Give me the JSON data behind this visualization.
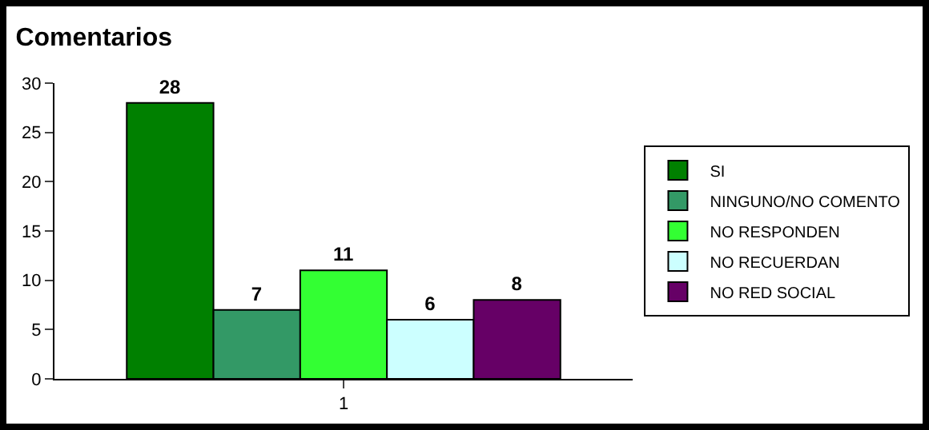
{
  "chart_data": {
    "type": "bar",
    "title": "Comentarios",
    "categories": [
      "1"
    ],
    "series": [
      {
        "name": "SI",
        "color": "#008000",
        "values": [
          28
        ]
      },
      {
        "name": "NINGUNO/NO COMENTO",
        "color": "#339966",
        "values": [
          7
        ]
      },
      {
        "name": "NO RESPONDEN",
        "color": "#33ff33",
        "values": [
          11
        ]
      },
      {
        "name": "NO RECUERDAN",
        "color": "#ccffff",
        "values": [
          6
        ]
      },
      {
        "name": "NO RED SOCIAL",
        "color": "#660066",
        "values": [
          8
        ]
      }
    ],
    "ylim": [
      0,
      30
    ],
    "yticks": [
      0,
      5,
      10,
      15,
      20,
      25,
      30
    ],
    "grid": false,
    "legend": "right",
    "data_labels": true
  }
}
